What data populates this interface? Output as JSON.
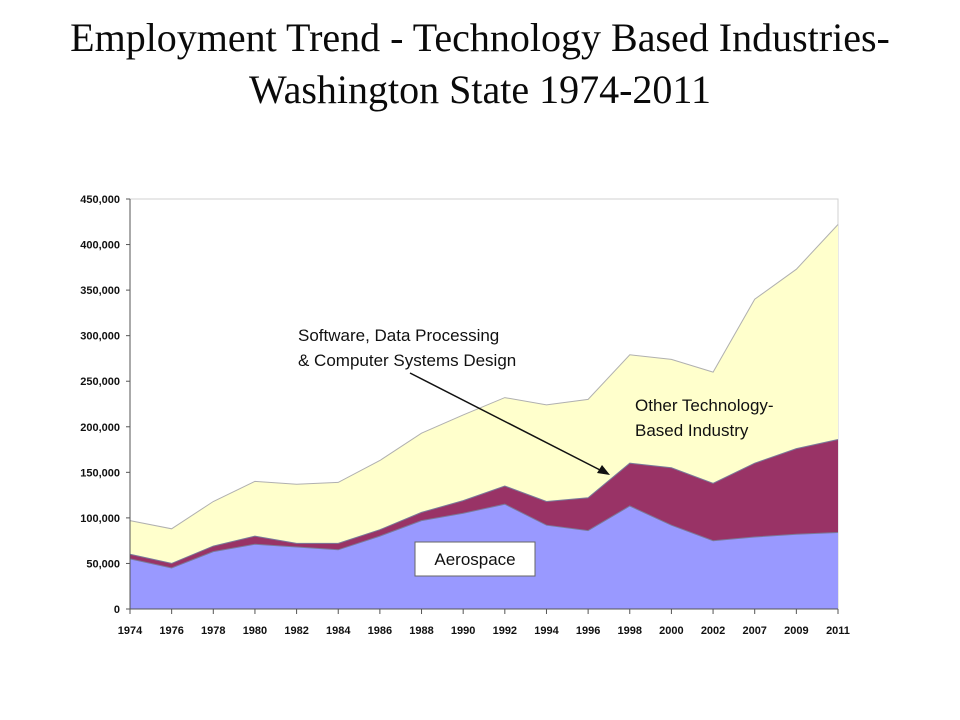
{
  "slide": {
    "title_line1": "Employment Trend - Technology Based Industries-",
    "title_line2": "Washington State 1974-2011"
  },
  "chart_data": {
    "type": "area",
    "stacked": true,
    "title": "Employment Trend - Technology Based Industries- Washington State 1974-2011",
    "xlabel": "",
    "ylabel": "",
    "categories": [
      "1974",
      "1976",
      "1978",
      "1980",
      "1982",
      "1984",
      "1986",
      "1988",
      "1990",
      "1992",
      "1994",
      "1996",
      "1998",
      "2000",
      "2002",
      "2007",
      "2009",
      "2011"
    ],
    "ylim": [
      0,
      450000
    ],
    "yticks": [
      0,
      50000,
      100000,
      150000,
      200000,
      250000,
      300000,
      350000,
      400000,
      450000
    ],
    "ytick_labels": [
      "0",
      "50,000",
      "100,000",
      "150,000",
      "200,000",
      "250,000",
      "300,000",
      "350,000",
      "400,000",
      "450,000"
    ],
    "grid": false,
    "series": [
      {
        "name": "Aerospace",
        "color": "#9999ff",
        "values": [
          55000,
          45000,
          63000,
          71000,
          68000,
          65000,
          80000,
          97000,
          105000,
          115000,
          92000,
          86000,
          113000,
          92000,
          75000,
          79000,
          82000,
          84000
        ]
      },
      {
        "name": "Software, Data Processing & Computer Systems Design",
        "color": "#993366",
        "values": [
          5000,
          5000,
          6000,
          9000,
          4000,
          7000,
          7000,
          9000,
          14000,
          20000,
          26000,
          36000,
          47000,
          63000,
          63000,
          81000,
          94000,
          102000
        ]
      },
      {
        "name": "Other Technology-Based Industry",
        "color": "#ffffcc",
        "values": [
          37000,
          38000,
          49000,
          60000,
          65000,
          67000,
          76000,
          87000,
          94000,
          97000,
          106000,
          108000,
          119000,
          119000,
          122000,
          180000,
          197000,
          236000
        ]
      }
    ],
    "annotations": [
      {
        "text_line1": "Software, Data Processing",
        "text_line2": "& Computer Systems Design",
        "arrow_to_category": "1997",
        "arrow_to_value": 147000
      },
      {
        "text_line1": "Other Technology-",
        "text_line2": "Based Industry"
      },
      {
        "text": "Aerospace"
      }
    ]
  }
}
